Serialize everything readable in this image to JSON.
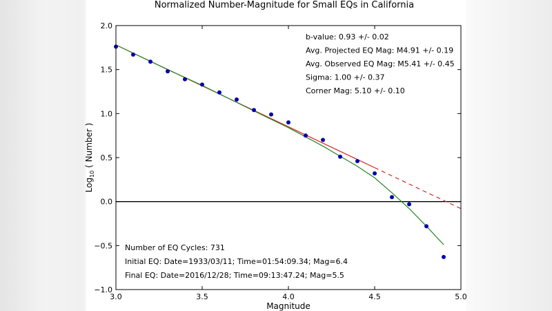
{
  "chart_data": {
    "type": "scatter",
    "title": "Normalized Number-Magnitude for Small EQs in California",
    "xlabel": "Magnitude",
    "ylabel_main": "Log",
    "ylabel_sub": "10",
    "ylabel_rest": " ( Number )",
    "xlim": [
      3.0,
      5.0
    ],
    "ylim": [
      -1.0,
      2.0
    ],
    "xticks": [
      "3.0",
      "3.5",
      "4.0",
      "4.5",
      "5.0"
    ],
    "yticks": [
      "2.0",
      "1.5",
      "1.0",
      "0.5",
      "0.0",
      "−0.5",
      "−1.0"
    ],
    "grid": false,
    "points": {
      "color": "#0000aa",
      "x": [
        3.0,
        3.1,
        3.2,
        3.3,
        3.4,
        3.5,
        3.6,
        3.7,
        3.8,
        3.9,
        4.0,
        4.1,
        4.2,
        4.3,
        4.4,
        4.5,
        4.6,
        4.7,
        4.8,
        4.9
      ],
      "y": [
        1.76,
        1.67,
        1.59,
        1.48,
        1.39,
        1.33,
        1.24,
        1.16,
        1.04,
        0.99,
        0.9,
        0.75,
        0.7,
        0.51,
        0.46,
        0.32,
        0.05,
        -0.03,
        -0.28,
        -0.63
      ]
    },
    "fit_line": {
      "color": "#dd2222",
      "x": [
        3.0,
        4.5
      ],
      "y": [
        1.78,
        0.385
      ]
    },
    "fit_line_extension": {
      "color": "#dd2222",
      "style": "dashed",
      "x": [
        4.5,
        5.0
      ],
      "y": [
        0.385,
        -0.08
      ]
    },
    "corner_curve": {
      "color": "#228822",
      "x": [
        3.0,
        3.3,
        3.5,
        3.8,
        4.0,
        4.2,
        4.4,
        4.5,
        4.6,
        4.7,
        4.8,
        4.9
      ],
      "y": [
        1.78,
        1.5,
        1.32,
        1.03,
        0.84,
        0.63,
        0.4,
        0.27,
        0.1,
        -0.08,
        -0.28,
        -0.49
      ]
    },
    "zero_line": {
      "color": "#000000",
      "y": 0.0
    },
    "annotations_top": [
      "b-value:  0.93 +/- 0.02",
      "Avg. Projected EQ Mag:  M4.91 +/- 0.19",
      "Avg. Observed EQ Mag:  M5.41 +/- 0.45",
      "Sigma:  1.00 +/- 0.37",
      "Corner Mag:  5.10 +/- 0.10"
    ],
    "annotations_bottom": [
      "Number of EQ Cycles: 731",
      "Initial EQ: Date=1933/03/11;  Time=01:54:09.34;   Mag=6.4",
      "Final EQ:  Date=2016/12/28;  Time=09:13:47.24;   Mag=5.5"
    ]
  }
}
